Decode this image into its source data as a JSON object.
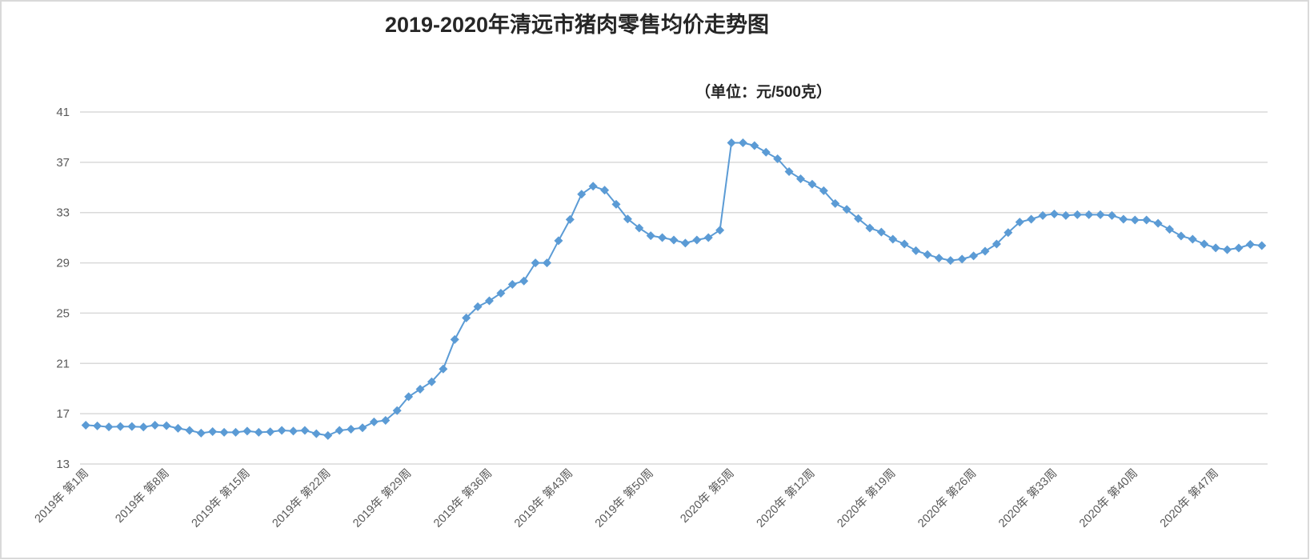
{
  "chart_data": {
    "type": "line",
    "title": "2019-2020年清远市猪肉零售均价走势图",
    "subtitle": "（单位：元/500克）",
    "xlabel": "",
    "ylabel": "",
    "ylim": [
      13,
      41
    ],
    "yticks": [
      13,
      17,
      21,
      25,
      29,
      33,
      37,
      41
    ],
    "grid": true,
    "legend": "none",
    "tick_every": 7,
    "x_tick_labels": [
      "2019年 第1周",
      "2019年 第8周",
      "2019年 第15周",
      "2019年 第22周",
      "2019年 第29周",
      "2019年 第36周",
      "2019年 第43周",
      "2019年 第50周",
      "2020年 第5周",
      "2020年 第12周",
      "2020年 第19周",
      "2020年 第26周",
      "2020年 第33周",
      "2020年 第40周",
      "2020年 第47周"
    ],
    "series": [
      {
        "name": "猪肉零售均价",
        "color": "#5b9bd5",
        "values": [
          16.09,
          16.03,
          15.95,
          15.98,
          15.98,
          15.94,
          16.09,
          16.05,
          15.84,
          15.67,
          15.46,
          15.58,
          15.52,
          15.52,
          15.62,
          15.52,
          15.56,
          15.67,
          15.62,
          15.67,
          15.41,
          15.27,
          15.67,
          15.77,
          15.88,
          16.35,
          16.47,
          17.25,
          18.35,
          18.95,
          19.54,
          20.56,
          22.9,
          24.62,
          25.51,
          25.98,
          26.59,
          27.29,
          27.56,
          29.0,
          29.0,
          30.76,
          32.45,
          34.46,
          35.1,
          34.78,
          33.66,
          32.49,
          31.77,
          31.16,
          31.01,
          30.82,
          30.57,
          30.82,
          31.01,
          31.6,
          38.55,
          38.55,
          38.33,
          37.8,
          37.28,
          36.26,
          35.69,
          35.26,
          34.74,
          33.72,
          33.25,
          32.52,
          31.77,
          31.45,
          30.88,
          30.5,
          29.97,
          29.66,
          29.38,
          29.19,
          29.3,
          29.55,
          29.93,
          30.5,
          31.41,
          32.24,
          32.47,
          32.77,
          32.89,
          32.77,
          32.83,
          32.83,
          32.83,
          32.77,
          32.47,
          32.41,
          32.41,
          32.15,
          31.67,
          31.14,
          30.88,
          30.5,
          30.19,
          30.05,
          30.18,
          30.47,
          30.37
        ]
      }
    ]
  }
}
